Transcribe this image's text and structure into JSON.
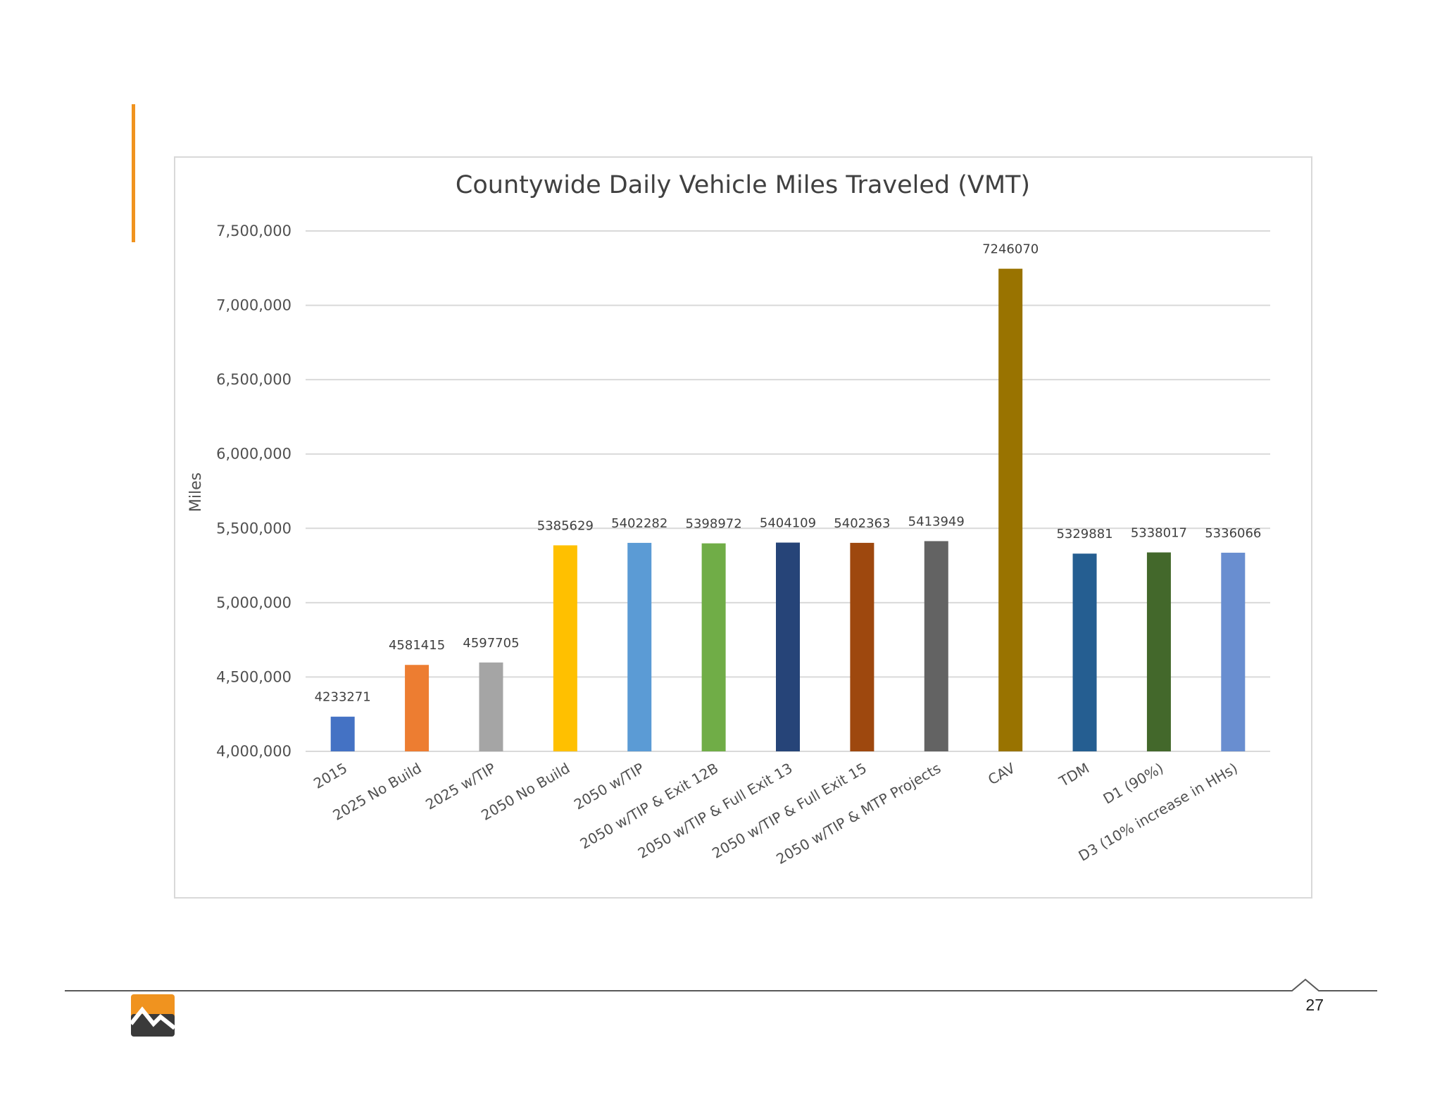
{
  "page": {
    "number": "27"
  },
  "colors": {
    "accent": "#f0931f",
    "footer_line": "#595959",
    "logo_orange": "#f0931f",
    "logo_dark": "#3a3a3a"
  },
  "logo": {
    "icon": "mountain-logo-icon"
  },
  "chart_data": {
    "type": "bar",
    "title": "Countywide Daily Vehicle Miles Traveled (VMT)",
    "xlabel": "",
    "ylabel": "Miles",
    "ylim": [
      4000000,
      7500000
    ],
    "yticks": [
      4000000,
      4500000,
      5000000,
      5500000,
      6000000,
      6500000,
      7000000,
      7500000
    ],
    "ytick_labels": [
      "4,000,000",
      "4,500,000",
      "5,000,000",
      "5,500,000",
      "6,000,000",
      "6,500,000",
      "7,000,000",
      "7,500,000"
    ],
    "grid": true,
    "legend": "none",
    "categories": [
      "2015",
      "2025 No Build",
      "2025 w/TIP",
      "2050 No Build",
      "2050 w/TIP",
      "2050 w/TIP & Exit 12B",
      "2050 w/TIP & Full Exit 13",
      "2050 w/TIP & Full Exit 15",
      "2050 w/TIP & MTP Projects",
      "CAV",
      "TDM",
      "D1 (90%)",
      "D3 (10% increase in HHs)"
    ],
    "values": [
      4233271,
      4581415,
      4597705,
      5385629,
      5402282,
      5398972,
      5404109,
      5402363,
      5413949,
      7246070,
      5329881,
      5338017,
      5336066
    ],
    "data_labels": [
      "4233271",
      "4581415",
      "4597705",
      "5385629",
      "5402282",
      "5398972",
      "5404109",
      "5402363",
      "5413949",
      "7246070",
      "5329881",
      "5338017",
      "5336066"
    ],
    "bar_colors": [
      "#4472c4",
      "#ed7d31",
      "#a5a5a5",
      "#ffc000",
      "#5b9bd5",
      "#70ad47",
      "#264478",
      "#9e480e",
      "#636363",
      "#997300",
      "#255e91",
      "#43682b",
      "#698ed0"
    ]
  }
}
